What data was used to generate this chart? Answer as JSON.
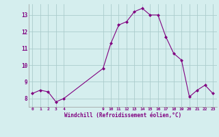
{
  "x": [
    0,
    1,
    2,
    3,
    4,
    9,
    10,
    11,
    12,
    13,
    14,
    15,
    16,
    17,
    18,
    19,
    20,
    21,
    22,
    23
  ],
  "y": [
    8.3,
    8.5,
    8.4,
    7.8,
    8.0,
    9.8,
    11.3,
    12.4,
    12.6,
    13.2,
    13.4,
    13.0,
    13.0,
    11.7,
    10.7,
    10.3,
    8.1,
    8.5,
    8.8,
    8.3
  ],
  "line_color": "#800080",
  "marker": "D",
  "marker_size": 2.0,
  "background_color": "#d5eeee",
  "grid_color": "#aacccc",
  "xlabel": "Windchill (Refroidissement éolien,°C)",
  "xlabel_color": "#800080",
  "tick_color": "#800080",
  "ylim": [
    7.5,
    13.65
  ],
  "yticks": [
    8,
    9,
    10,
    11,
    12,
    13
  ],
  "xticks": [
    0,
    1,
    2,
    3,
    4,
    9,
    10,
    11,
    12,
    13,
    14,
    15,
    16,
    17,
    18,
    19,
    20,
    21,
    22,
    23
  ],
  "xtick_labels": [
    "0",
    "1",
    "2",
    "3",
    "4",
    "9",
    "10",
    "11",
    "12",
    "13",
    "14",
    "15",
    "16",
    "17",
    "18",
    "19",
    "20",
    "21",
    "22",
    "23"
  ],
  "xlim": [
    -0.5,
    23.5
  ]
}
